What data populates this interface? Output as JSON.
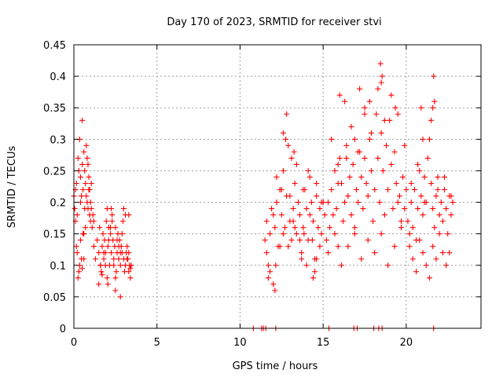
{
  "chart_data": {
    "type": "scatter",
    "title": "Day 170 of 2023, SRMTID for receiver stvi",
    "xlabel": "GPS time / hours",
    "ylabel": "SRMTID / TECUs",
    "xlim": [
      0,
      24.5
    ],
    "ylim": [
      0,
      0.45
    ],
    "xticks": [
      0,
      5,
      10,
      15,
      20
    ],
    "yticks": [
      0,
      0.05,
      0.1,
      0.15,
      0.2,
      0.25,
      0.3,
      0.35,
      0.4,
      0.45
    ],
    "xtick_labels": [
      "0",
      "5",
      "10",
      "15",
      "20"
    ],
    "ytick_labels": [
      "0",
      "0.05",
      "0.1",
      "0.15",
      "0.2",
      "0.25",
      "0.3",
      "0.35",
      "0.4",
      "0.45"
    ],
    "grid": true,
    "marker": "plus",
    "color": "#ff0000",
    "series": [
      {
        "name": "SRMTID",
        "x": [
          0.0,
          0.05,
          0.1,
          0.15,
          0.2,
          0.25,
          0.3,
          0.35,
          0.4,
          0.45,
          0.5,
          0.55,
          0.6,
          0.65,
          0.7,
          0.75,
          0.8,
          0.85,
          0.9,
          0.95,
          1.0,
          1.05,
          1.1,
          1.15,
          1.2,
          0.1,
          0.2,
          0.3,
          0.4,
          0.5,
          0.6,
          0.7,
          0.8,
          0.9,
          1.0,
          0.15,
          0.35,
          0.55,
          0.75,
          0.95,
          0.25,
          0.45,
          0.65,
          0.85,
          1.05,
          0.4,
          0.5,
          0.6,
          1.2,
          1.3,
          1.4,
          1.5,
          1.55,
          1.6,
          1.65,
          1.7,
          1.75,
          1.8,
          1.85,
          1.9,
          1.95,
          2.0,
          2.05,
          2.1,
          2.15,
          2.2,
          2.25,
          2.3,
          2.35,
          2.4,
          2.45,
          2.5,
          2.55,
          2.6,
          2.65,
          2.7,
          2.75,
          2.8,
          2.85,
          2.9,
          2.95,
          3.0,
          3.05,
          3.1,
          3.15,
          3.2,
          3.25,
          3.3,
          3.35,
          3.4,
          3.45,
          1.5,
          1.7,
          1.9,
          2.1,
          2.3,
          2.5,
          2.7,
          2.9,
          3.1,
          3.3,
          1.6,
          1.8,
          2.0,
          2.2,
          2.4,
          2.6,
          2.8,
          3.0,
          3.2,
          3.4,
          2.25,
          2.8,
          3.3,
          2.5,
          2.05,
          11.5,
          11.6,
          11.7,
          11.8,
          11.9,
          12.0,
          12.1,
          12.2,
          12.3,
          12.4,
          12.5,
          12.6,
          12.7,
          12.8,
          12.9,
          13.0,
          13.1,
          13.2,
          13.3,
          13.4,
          13.5,
          13.6,
          13.7,
          13.8,
          13.9,
          14.0,
          14.1,
          14.2,
          14.3,
          14.4,
          14.5,
          14.6,
          14.7,
          14.8,
          14.9,
          15.0,
          11.6,
          11.8,
          12.0,
          12.2,
          12.4,
          12.6,
          12.8,
          13.0,
          13.2,
          13.4,
          13.6,
          13.8,
          14.0,
          14.2,
          14.4,
          14.6,
          14.8,
          15.0,
          11.7,
          12.1,
          12.5,
          12.9,
          13.3,
          13.7,
          14.1,
          14.5,
          14.9,
          12.15,
          13.25,
          14.35,
          12.75,
          13.85,
          14.6,
          13.1,
          12.6,
          15.1,
          15.2,
          15.3,
          15.4,
          15.5,
          15.6,
          15.7,
          15.8,
          15.9,
          16.0,
          16.1,
          16.2,
          16.3,
          16.4,
          16.5,
          16.6,
          16.7,
          16.8,
          16.9,
          17.0,
          17.1,
          17.2,
          17.3,
          17.4,
          17.5,
          17.6,
          17.7,
          17.8,
          17.9,
          18.0,
          18.1,
          18.2,
          18.3,
          18.4,
          18.5,
          18.6,
          18.7,
          18.8,
          18.9,
          19.0,
          19.1,
          19.2,
          19.3,
          19.4,
          19.5,
          19.6,
          19.7,
          19.8,
          19.9,
          20.0,
          15.3,
          15.7,
          16.1,
          16.5,
          16.9,
          17.3,
          17.7,
          18.1,
          18.5,
          18.9,
          19.3,
          19.7,
          15.5,
          15.9,
          16.3,
          16.7,
          17.1,
          17.5,
          17.9,
          18.3,
          18.7,
          19.1,
          19.5,
          19.9,
          16.0,
          17.5,
          18.45,
          18.5,
          19.35,
          16.9,
          17.2,
          16.4,
          15.9,
          18.55,
          17.8,
          20.1,
          20.2,
          20.3,
          20.4,
          20.5,
          20.6,
          20.7,
          20.8,
          20.9,
          21.0,
          21.1,
          21.2,
          21.3,
          21.4,
          21.5,
          21.6,
          21.7,
          21.8,
          21.9,
          22.0,
          22.1,
          22.2,
          22.3,
          22.4,
          22.5,
          22.6,
          22.7,
          22.8,
          20.2,
          20.4,
          20.6,
          20.8,
          21.0,
          21.2,
          21.4,
          21.6,
          21.8,
          22.0,
          22.2,
          22.4,
          22.6,
          20.3,
          20.7,
          21.1,
          21.5,
          21.9,
          22.3,
          22.7,
          21.65,
          21.7,
          21.6,
          21.0,
          20.9,
          10.8,
          11.3,
          11.4,
          11.55,
          12.15,
          15.35,
          16.85,
          17.05,
          18.05,
          18.35,
          18.55,
          21.65
        ],
        "y": [
          0.21,
          0.19,
          0.22,
          0.23,
          0.18,
          0.27,
          0.25,
          0.3,
          0.24,
          0.21,
          0.26,
          0.22,
          0.28,
          0.25,
          0.23,
          0.21,
          0.2,
          0.19,
          0.22,
          0.18,
          0.17,
          0.19,
          0.16,
          0.18,
          0.17,
          0.17,
          0.12,
          0.09,
          0.14,
          0.33,
          0.11,
          0.16,
          0.27,
          0.24,
          0.2,
          0.13,
          0.1,
          0.15,
          0.29,
          0.22,
          0.08,
          0.11,
          0.19,
          0.26,
          0.23,
          0.2,
          0.095,
          0.15,
          0.13,
          0.11,
          0.14,
          0.12,
          0.16,
          0.1,
          0.09,
          0.13,
          0.15,
          0.11,
          0.14,
          0.12,
          0.17,
          0.19,
          0.13,
          0.16,
          0.1,
          0.15,
          0.12,
          0.18,
          0.14,
          0.11,
          0.13,
          0.16,
          0.09,
          0.12,
          0.15,
          0.11,
          0.14,
          0.1,
          0.13,
          0.12,
          0.17,
          0.11,
          0.09,
          0.1,
          0.12,
          0.13,
          0.11,
          0.09,
          0.1,
          0.08,
          0.1,
          0.07,
          0.085,
          0.1,
          0.14,
          0.17,
          0.06,
          0.13,
          0.15,
          0.18,
          0.12,
          0.1,
          0.12,
          0.08,
          0.16,
          0.1,
          0.14,
          0.12,
          0.19,
          0.11,
          0.095,
          0.19,
          0.05,
          0.18,
          0.08,
          0.07,
          0.14,
          0.17,
          0.1,
          0.15,
          0.19,
          0.07,
          0.16,
          0.2,
          0.13,
          0.22,
          0.18,
          0.25,
          0.16,
          0.21,
          0.29,
          0.17,
          0.14,
          0.19,
          0.23,
          0.15,
          0.2,
          0.18,
          0.12,
          0.16,
          0.22,
          0.19,
          0.14,
          0.24,
          0.2,
          0.17,
          0.11,
          0.21,
          0.16,
          0.19,
          0.15,
          0.2,
          0.12,
          0.09,
          0.18,
          0.24,
          0.13,
          0.15,
          0.34,
          0.21,
          0.17,
          0.26,
          0.14,
          0.22,
          0.1,
          0.18,
          0.08,
          0.23,
          0.13,
          0.2,
          0.08,
          0.06,
          0.22,
          0.13,
          0.16,
          0.11,
          0.25,
          0.09,
          0.2,
          0.1,
          0.28,
          0.14,
          0.3,
          0.15,
          0.11,
          0.27,
          0.31,
          0.18,
          0.14,
          0.2,
          0.16,
          0.22,
          0.18,
          0.25,
          0.19,
          0.13,
          0.27,
          0.23,
          0.17,
          0.2,
          0.29,
          0.21,
          0.24,
          0.18,
          0.26,
          0.15,
          0.22,
          0.2,
          0.28,
          0.24,
          0.19,
          0.27,
          0.23,
          0.21,
          0.3,
          0.25,
          0.17,
          0.22,
          0.34,
          0.27,
          0.2,
          0.31,
          0.25,
          0.18,
          0.29,
          0.22,
          0.33,
          0.26,
          0.19,
          0.28,
          0.23,
          0.2,
          0.21,
          0.17,
          0.24,
          0.19,
          0.22,
          0.12,
          0.15,
          0.1,
          0.13,
          0.16,
          0.11,
          0.14,
          0.12,
          0.15,
          0.1,
          0.13,
          0.16,
          0.3,
          0.26,
          0.36,
          0.32,
          0.28,
          0.35,
          0.31,
          0.38,
          0.33,
          0.37,
          0.34,
          0.29,
          0.37,
          0.34,
          0.42,
          0.39,
          0.35,
          0.3,
          0.38,
          0.27,
          0.23,
          0.4,
          0.36,
          0.17,
          0.15,
          0.2,
          0.16,
          0.22,
          0.14,
          0.19,
          0.25,
          0.21,
          0.18,
          0.24,
          0.2,
          0.27,
          0.3,
          0.23,
          0.19,
          0.16,
          0.21,
          0.24,
          0.18,
          0.2,
          0.17,
          0.22,
          0.19,
          0.15,
          0.21,
          0.18,
          0.2,
          0.13,
          0.11,
          0.09,
          0.14,
          0.12,
          0.1,
          0.08,
          0.13,
          0.11,
          0.15,
          0.12,
          0.1,
          0.12,
          0.23,
          0.26,
          0.2,
          0.33,
          0.22,
          0.24,
          0.21,
          0.4,
          0.36,
          0.35,
          0.3,
          0.35,
          0,
          0,
          0,
          0,
          0,
          0,
          0,
          0,
          0,
          0,
          0,
          0
        ]
      }
    ]
  }
}
